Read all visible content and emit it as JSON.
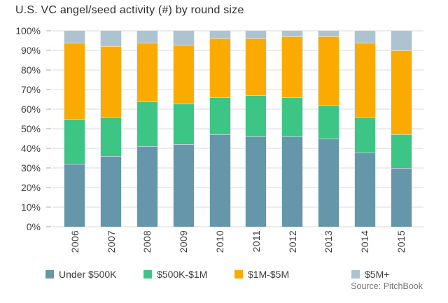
{
  "chart_data": {
    "type": "bar",
    "stacked": true,
    "percent_stacked": true,
    "title": "U.S. VC angel/seed activity (#) by round size",
    "source": "Source: PitchBook",
    "xlabel": "",
    "ylabel": "",
    "categories": [
      "2006",
      "2007",
      "2008",
      "2009",
      "2010",
      "2011",
      "2012",
      "2013",
      "2014",
      "2015"
    ],
    "series": [
      {
        "name": "Under $500K",
        "color": "#6596aa",
        "values": [
          32,
          36,
          41,
          42,
          47,
          46,
          46,
          45,
          38,
          30
        ]
      },
      {
        "name": "$500K-$1M",
        "color": "#3dc585",
        "values": [
          23,
          20,
          23,
          21,
          19,
          21,
          20,
          17,
          18,
          17
        ]
      },
      {
        "name": "$1M-$5M",
        "color": "#fbab00",
        "values": [
          39,
          36,
          30,
          30,
          30,
          29,
          31,
          35,
          38,
          43
        ]
      },
      {
        "name": "$5M+",
        "color": "#adc4d0",
        "values": [
          6,
          8,
          6,
          7,
          4,
          4,
          3,
          3,
          6,
          10
        ]
      }
    ],
    "ylim": [
      0,
      100
    ],
    "y_tick_labels": [
      "0%",
      "10%",
      "20%",
      "30%",
      "40%",
      "50%",
      "60%",
      "70%",
      "80%",
      "90%",
      "100%"
    ],
    "grid": true,
    "gridline_color": "#ececec",
    "axis_text_color": "#404040",
    "legend_position": "bottom",
    "x_label_rotation_deg": -90
  }
}
